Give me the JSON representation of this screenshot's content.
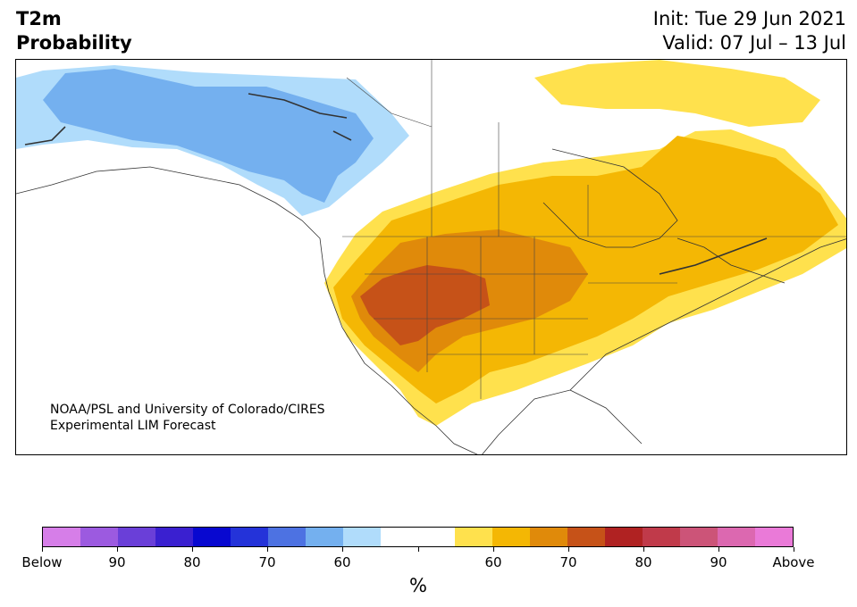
{
  "title": {
    "line1": "T2m",
    "line2": "Probability",
    "init": "Init: Tue 29 Jun 2021",
    "valid": "Valid: 07 Jul – 13 Jul"
  },
  "map": {
    "credit_line1": "NOAA/PSL and University of Colorado/CIRES",
    "credit_line2": "Experimental LIM Forecast"
  },
  "colorbar": {
    "unit": "%",
    "colors": [
      "#d67ee8",
      "#9c5ae0",
      "#6a3fd8",
      "#3a20d0",
      "#0808d0",
      "#2433d9",
      "#4d72e2",
      "#74b0ef",
      "#b0dcfb",
      "#ffffff",
      "#ffffff",
      "#ffe14d",
      "#f4b704",
      "#e08a0a",
      "#c65218",
      "#b02222",
      "#c03a4a",
      "#cc5478",
      "#dc68b0",
      "#ea7ad8"
    ],
    "tick_labels": [
      "Below",
      "90",
      "80",
      "70",
      "60",
      "",
      "60",
      "70",
      "80",
      "90",
      "Above"
    ]
  },
  "colors": {
    "blue_light": "#b0dcfb",
    "blue_mid": "#74b0ef",
    "yellow": "#ffe14d",
    "gold": "#f4b704",
    "orange": "#e08a0a",
    "rust": "#c65218",
    "borders": "#333333"
  }
}
